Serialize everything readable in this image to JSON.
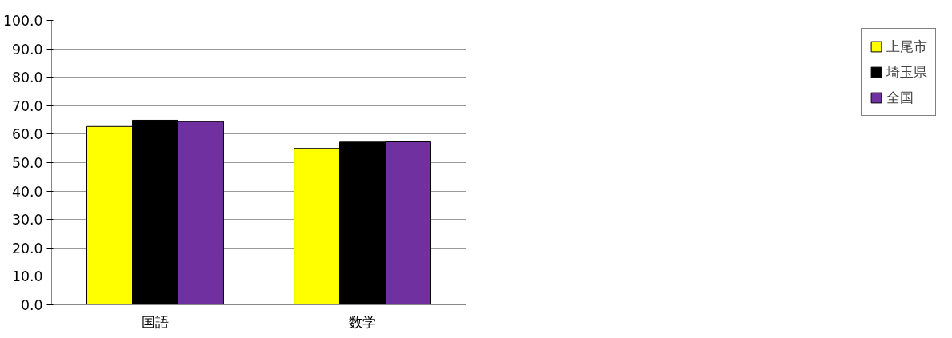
{
  "chart_data": {
    "type": "bar",
    "categories": [
      "国語",
      "数学"
    ],
    "series": [
      {
        "name": "上尾市",
        "color": "#ffff00",
        "values": [
          62.7,
          55.0
        ]
      },
      {
        "name": "埼玉県",
        "color": "#000000",
        "values": [
          64.9,
          57.2
        ]
      },
      {
        "name": "全国",
        "color": "#7030a0",
        "values": [
          64.4,
          57.3
        ]
      }
    ],
    "ylim": [
      0,
      100
    ],
    "yticks": [
      {
        "value": 0,
        "label": "0.0"
      },
      {
        "value": 10,
        "label": "10.0"
      },
      {
        "value": 20,
        "label": "20.0"
      },
      {
        "value": 30,
        "label": "30.0"
      },
      {
        "value": 40,
        "label": "40.0"
      },
      {
        "value": 50,
        "label": "50.0"
      },
      {
        "value": 60,
        "label": "60.0"
      },
      {
        "value": 70,
        "label": "70.0"
      },
      {
        "value": 80,
        "label": "80.0"
      },
      {
        "value": 90,
        "label": "90.0"
      },
      {
        "value": 100,
        "label": "100.0"
      }
    ],
    "grid": "y",
    "legend": "right"
  }
}
